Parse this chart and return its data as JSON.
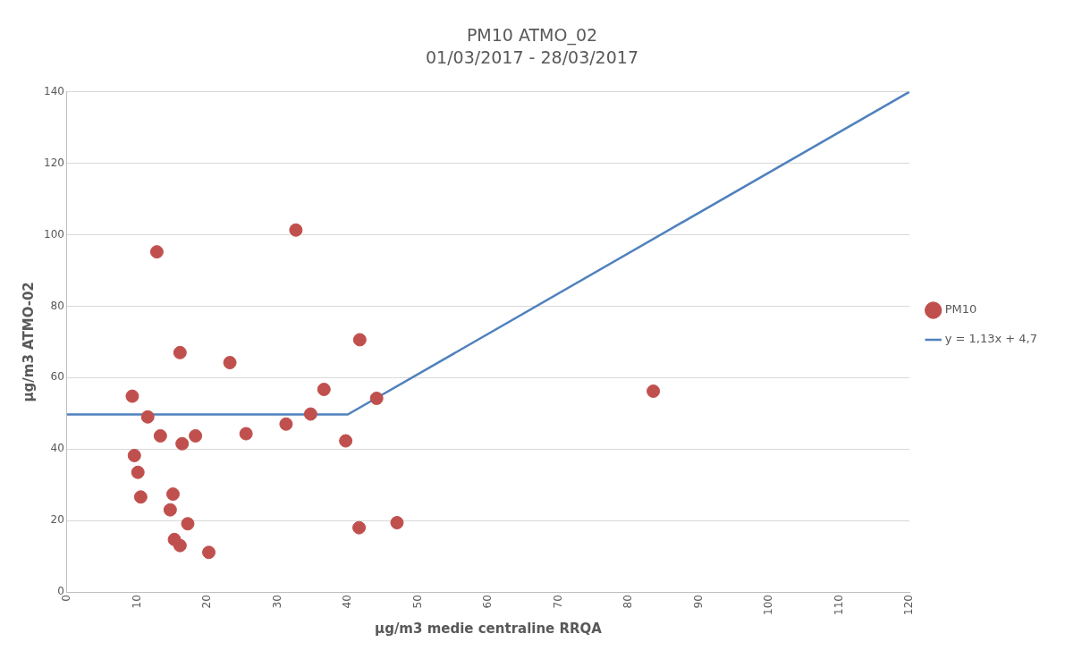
{
  "chart_data": {
    "type": "scatter",
    "title": "PM10 ATMO_02",
    "subtitle": "01/03/2017 - 28/03/2017",
    "xlabel": "µg/m3 medie centraline RRQA",
    "ylabel": "µg/m3 ATMO-02",
    "xlim": [
      0,
      120
    ],
    "xticks": [
      0,
      10,
      20,
      30,
      40,
      50,
      60,
      70,
      80,
      90,
      100,
      110,
      120
    ],
    "ylim": [
      0,
      140
    ],
    "yticks": [
      0,
      20,
      40,
      60,
      80,
      100,
      120,
      140
    ],
    "grid": "y",
    "legend": "right",
    "series": [
      {
        "name": "PM10",
        "marker": "circle",
        "color": "#c0504d",
        "x": [
          9.3,
          12.8,
          32.6,
          16.1,
          23.2,
          41.7,
          36.6,
          11.5,
          34.7,
          44.1,
          13.3,
          16.4,
          18.3,
          25.5,
          31.2,
          39.7,
          9.6,
          10.1,
          10.5,
          15.1,
          14.7,
          17.2,
          15.3,
          16.1,
          20.2,
          41.6,
          47,
          83.5
        ],
        "values": [
          54.8,
          95.2,
          101.3,
          67,
          64.2,
          70.6,
          56.7,
          49,
          49.8,
          54.2,
          43.7,
          41.5,
          43.7,
          44.3,
          47,
          42.3,
          38.2,
          33.5,
          26.6,
          27.4,
          23,
          19.1,
          14.7,
          13,
          11.1,
          18,
          19.4,
          56.2
        ]
      },
      {
        "name": "y = 1,13x + 4,7",
        "type": "line",
        "marker": "none",
        "line_style": "solid",
        "color": "#4f81bd",
        "x": [
          0,
          40,
          120
        ],
        "values": [
          49.7,
          49.7,
          140
        ]
      }
    ]
  }
}
